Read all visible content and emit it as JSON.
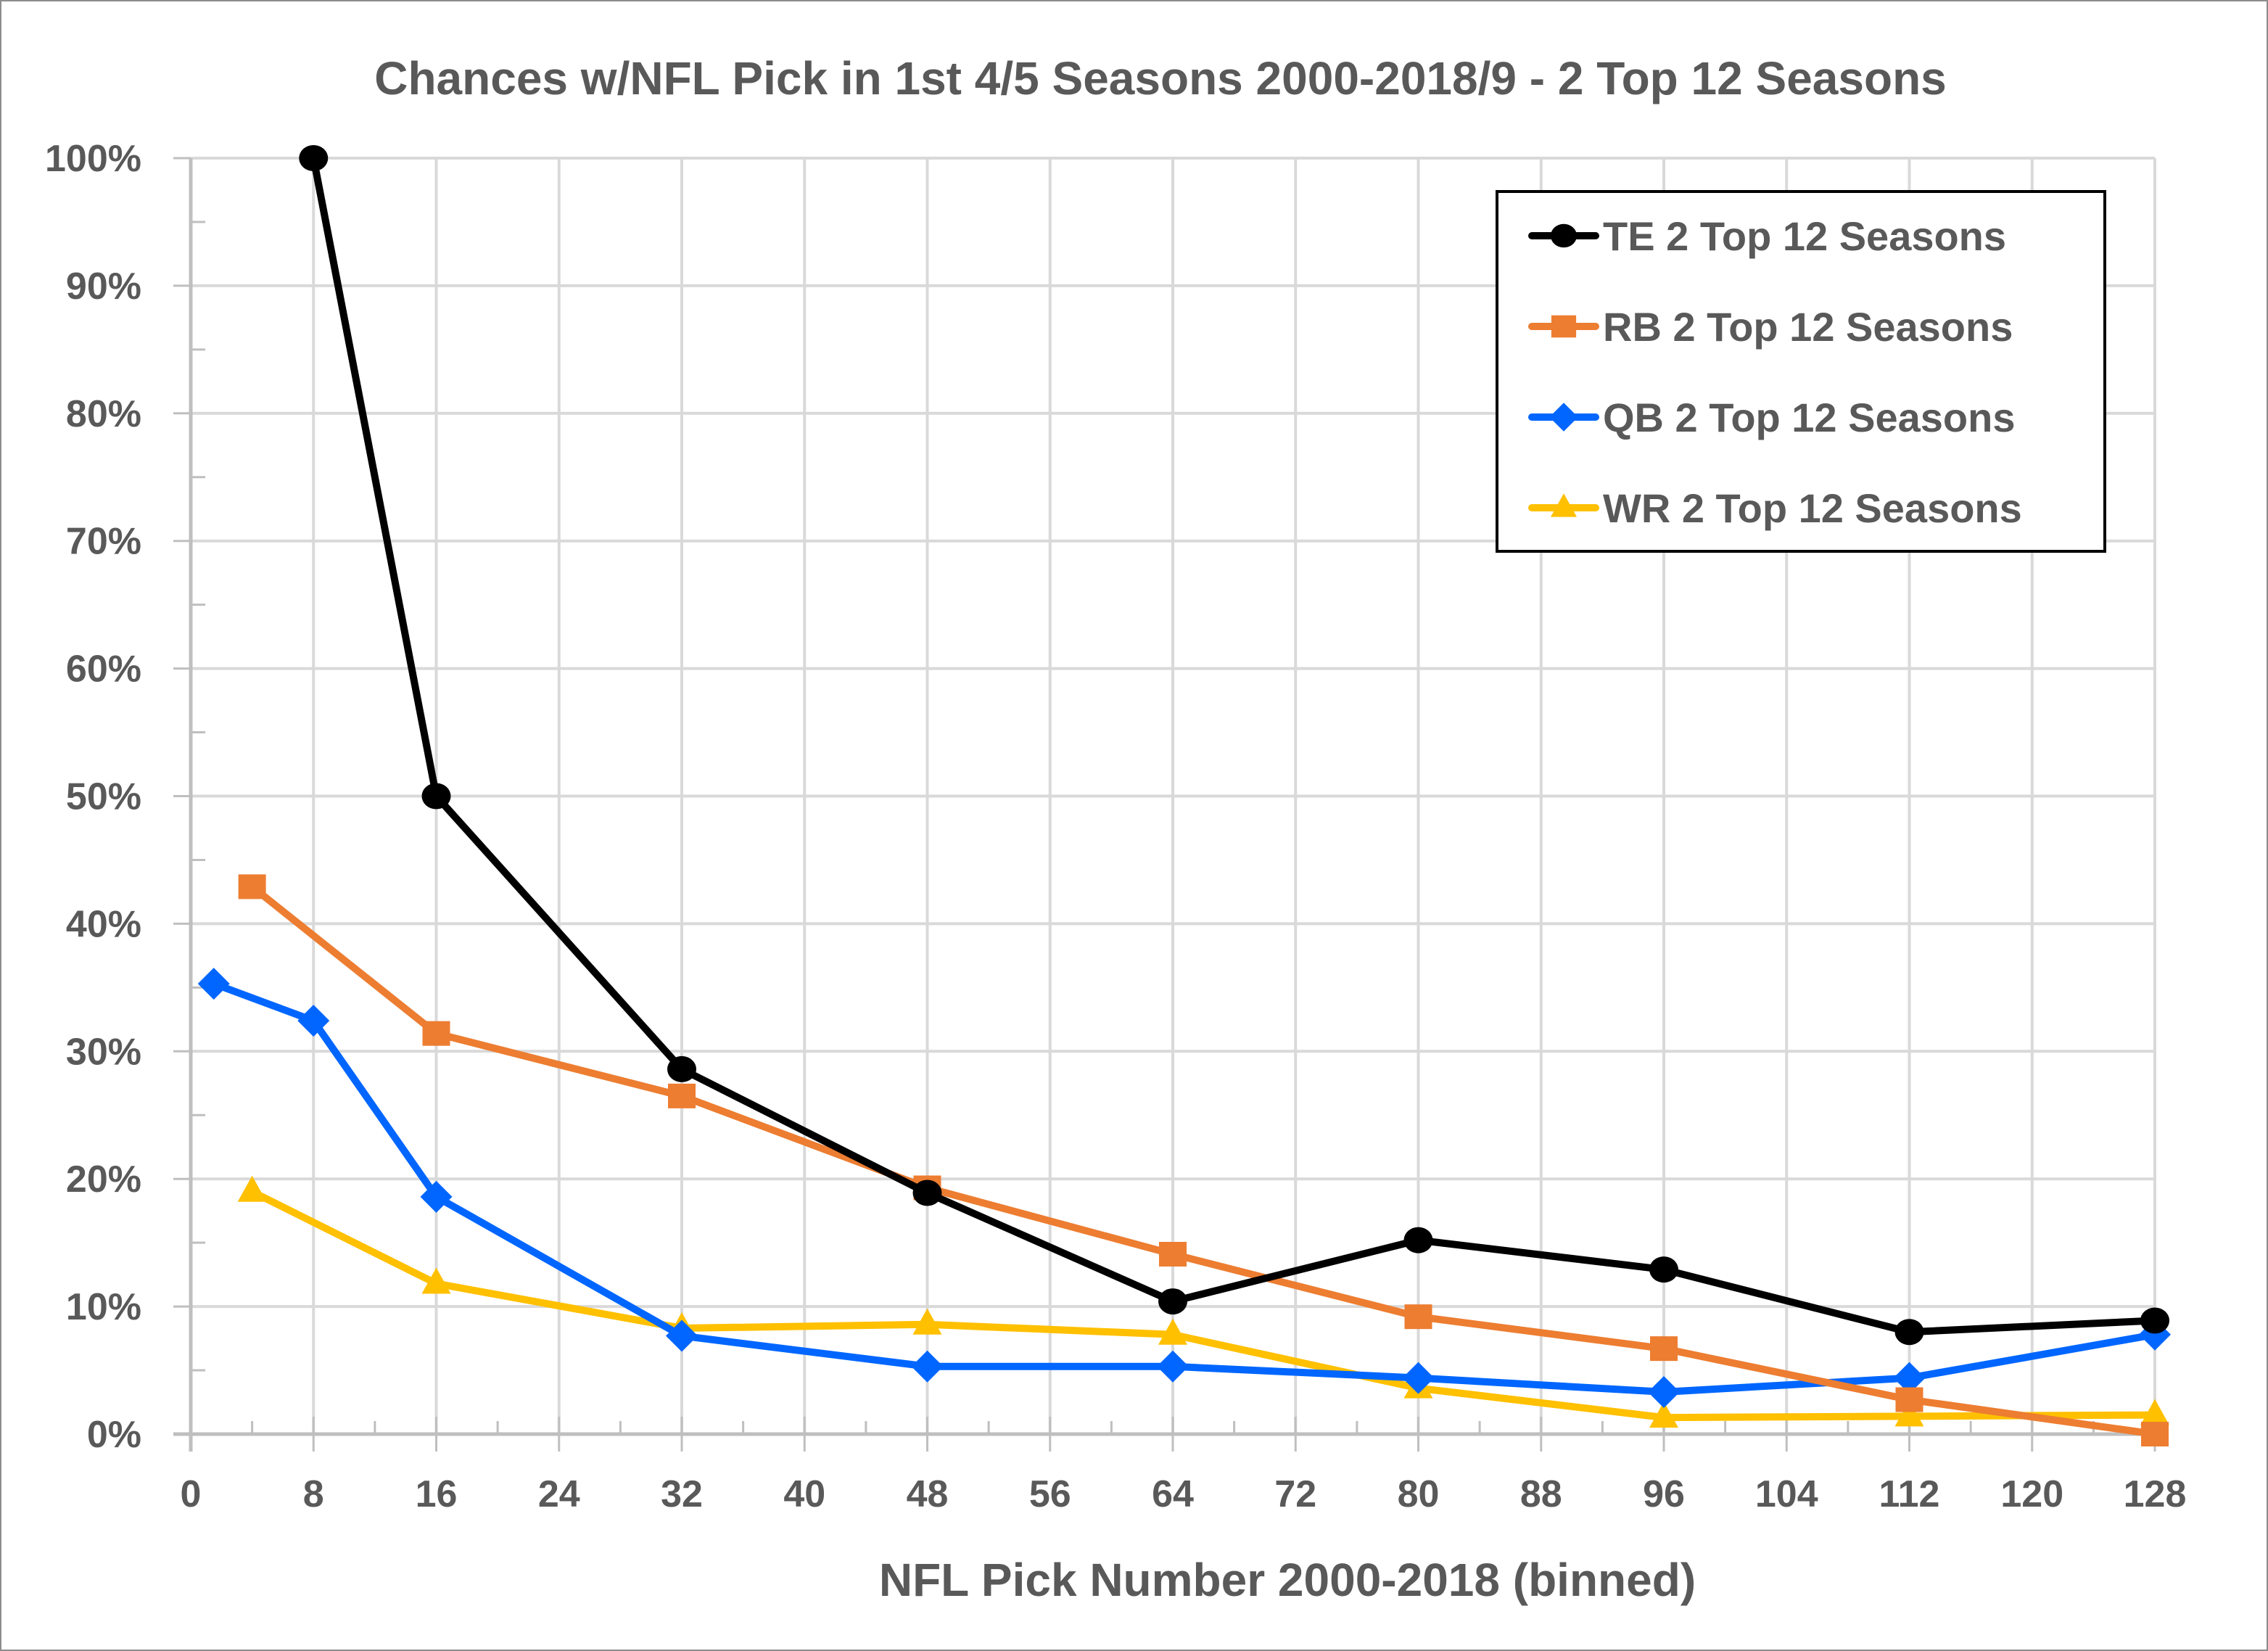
{
  "chart_data": {
    "type": "line",
    "title": "Chances w/NFL Pick in 1st 4/5 Seasons 2000-2018/9 - 2 Top 12 Seasons",
    "xlabel": "NFL Pick Number 2000-2018 (binned)",
    "ylabel": "",
    "xlim": [
      0,
      128
    ],
    "ylim": [
      0,
      100
    ],
    "x_ticks": [
      0,
      8,
      16,
      24,
      32,
      40,
      48,
      56,
      64,
      72,
      80,
      88,
      96,
      104,
      112,
      120,
      128
    ],
    "x_minor_step": 4,
    "y_ticks": [
      0,
      10,
      20,
      30,
      40,
      50,
      60,
      70,
      80,
      90,
      100
    ],
    "y_tick_labels": [
      "0%",
      "10%",
      "20%",
      "30%",
      "40%",
      "50%",
      "60%",
      "70%",
      "80%",
      "90%",
      "100%"
    ],
    "y_minor_step": 5,
    "grid": true,
    "legend_position": "top-right",
    "series": [
      {
        "name": "TE 2 Top 12 Seasons",
        "color": "#000000",
        "marker": "circle",
        "x": [
          8,
          16,
          32,
          48,
          64,
          80,
          96,
          112,
          128
        ],
        "values": [
          100,
          50,
          28.6,
          18.9,
          10.4,
          15.2,
          12.9,
          8.0,
          8.9
        ]
      },
      {
        "name": "RB 2 Top 12 Seasons",
        "color": "#ED7D31",
        "marker": "square",
        "x": [
          4,
          16,
          32,
          48,
          64,
          80,
          96,
          112,
          128
        ],
        "values": [
          42.9,
          31.4,
          26.5,
          19.3,
          14.1,
          9.2,
          6.7,
          2.7,
          0
        ]
      },
      {
        "name": "QB 2 Top 12 Seasons",
        "color": "#0066FF",
        "marker": "diamond",
        "x": [
          1.5,
          8,
          16,
          32,
          48,
          64,
          80,
          96,
          112,
          128
        ],
        "values": [
          35.3,
          32.4,
          18.6,
          7.7,
          5.3,
          5.3,
          4.4,
          3.3,
          4.4,
          7.8
        ]
      },
      {
        "name": "WR 2 Top 12 Seasons",
        "color": "#FFC000",
        "marker": "triangle",
        "x": [
          4,
          16,
          32,
          48,
          64,
          80,
          96,
          112,
          128
        ],
        "values": [
          19.0,
          11.8,
          8.3,
          8.6,
          7.8,
          3.6,
          1.3,
          1.4,
          1.5
        ]
      }
    ]
  }
}
